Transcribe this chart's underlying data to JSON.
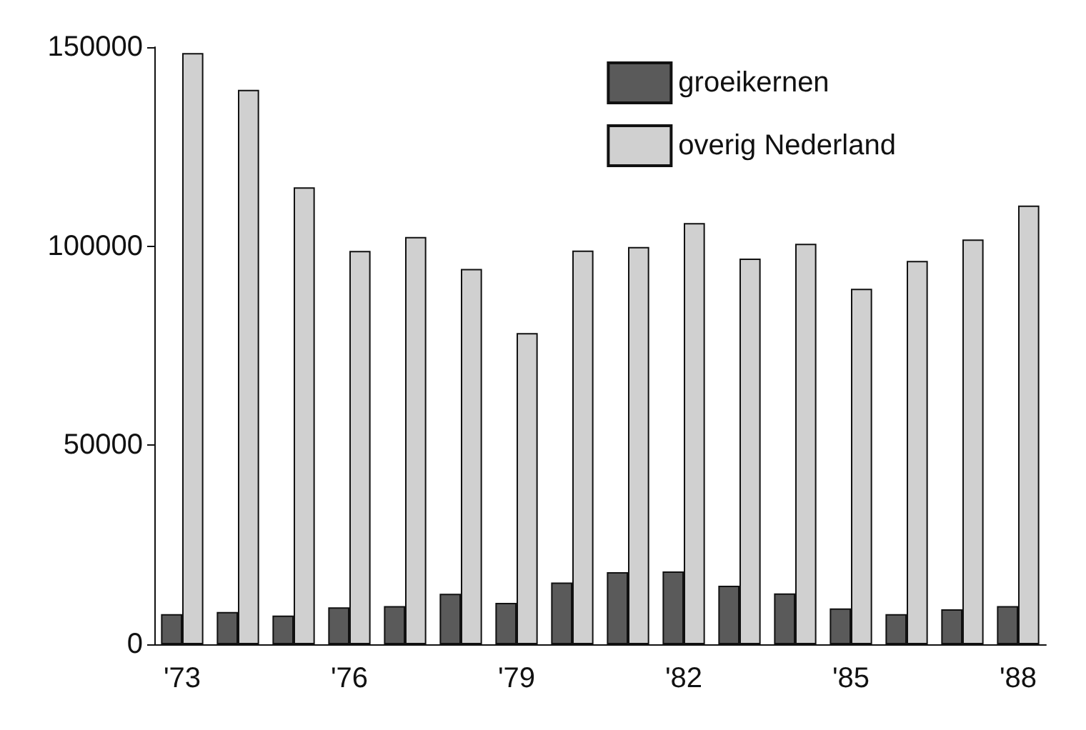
{
  "chart_data": {
    "type": "bar",
    "categories": [
      "'73",
      null,
      null,
      "'76",
      null,
      null,
      "'79",
      null,
      null,
      "'82",
      null,
      null,
      "'85",
      null,
      null,
      "'88"
    ],
    "series": [
      {
        "name": "groeikernen",
        "color": "#5a5a5a",
        "values": [
          7600,
          8100,
          7200,
          9300,
          9600,
          12700,
          10400,
          15500,
          18100,
          18300,
          14700,
          12800,
          9000,
          7600,
          8800,
          9600
        ]
      },
      {
        "name": "overig Nederland",
        "color": "#d0d0d0",
        "values": [
          148500,
          139300,
          114800,
          98800,
          102300,
          94300,
          78200,
          98900,
          99800,
          105800,
          96900,
          100600,
          89300,
          96300,
          101700,
          110200
        ]
      }
    ],
    "ylim": [
      0,
      150000
    ],
    "yticks": [
      0,
      50000,
      100000,
      150000
    ],
    "grid": false,
    "legend": "top right"
  }
}
